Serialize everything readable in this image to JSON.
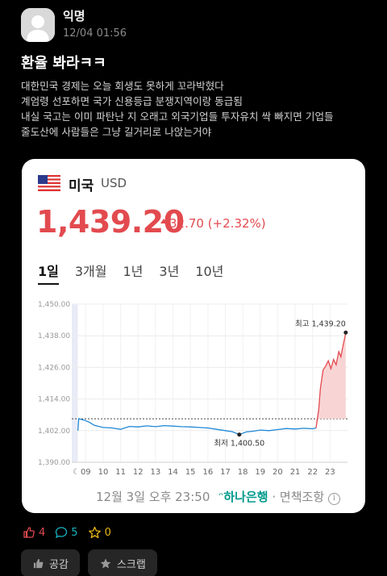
{
  "post": {
    "author": "익명",
    "time": "12/04 01:56",
    "title": "환율 봐라ㅋㅋ",
    "body": [
      "대한민국 경제는 오늘 회생도 못하게 꼬라박혔다",
      "계엄령 선포하면 국가 신용등급 분쟁지역이랑 동급됨",
      "내실 국고는 이미 파탄난 지 오래고 외국기업들 투자유치 싹 빠지면 기업들",
      "줄도산에 사람들은 그냥 길거리로 나앉는거야"
    ]
  },
  "card": {
    "country": "미국",
    "currency": "USD",
    "rate": "1,439.20",
    "change": "32.70 (+2.32%)",
    "tabs": [
      "1일",
      "3개월",
      "1년",
      "3년",
      "10년"
    ],
    "active_tab": "1일",
    "timestamp": "12월 3일 오후 23:50",
    "source": "하나은행",
    "disclaimer": "면책조항",
    "colors": {
      "up": "#e24a4f",
      "line": "#1f88d6",
      "flag_blue": "#2b3a8c"
    }
  },
  "chart_data": {
    "type": "line",
    "title": "",
    "xlabel": "",
    "ylabel": "",
    "y_ticks": [
      "1,450.00",
      "1,438.00",
      "1,426.00",
      "1,414.00",
      "1,402.00",
      "1,390.00"
    ],
    "x_ticks": [
      "09",
      "10",
      "11",
      "12",
      "13",
      "14",
      "15",
      "16",
      "17",
      "18",
      "19",
      "20",
      "21",
      "22",
      "23"
    ],
    "ylim": [
      1390,
      1450
    ],
    "xlim": [
      8.2,
      24.0
    ],
    "reference_line": 1406.5,
    "annotations": {
      "max_label": "최고 1,439.20",
      "min_label": "최저 1,400.50",
      "max": {
        "x": 23.9,
        "y": 1439.2
      },
      "min": {
        "x": 17.8,
        "y": 1400.5
      }
    },
    "series": [
      {
        "points": [
          [
            8.55,
            1402.0
          ],
          [
            8.6,
            1406.5
          ],
          [
            8.9,
            1406.0
          ],
          [
            9.2,
            1405.2
          ],
          [
            9.5,
            1404.0
          ],
          [
            10.0,
            1403.2
          ],
          [
            10.5,
            1403.0
          ],
          [
            11.0,
            1402.5
          ],
          [
            11.5,
            1403.6
          ],
          [
            12.0,
            1403.4
          ],
          [
            12.5,
            1403.8
          ],
          [
            13.0,
            1403.5
          ],
          [
            13.5,
            1403.9
          ],
          [
            14.0,
            1403.7
          ],
          [
            14.5,
            1403.5
          ],
          [
            15.0,
            1403.4
          ],
          [
            15.5,
            1403.2
          ],
          [
            16.0,
            1403.0
          ],
          [
            16.5,
            1402.5
          ],
          [
            17.0,
            1402.0
          ],
          [
            17.4,
            1401.6
          ],
          [
            17.8,
            1400.5
          ],
          [
            18.2,
            1401.5
          ],
          [
            18.6,
            1401.8
          ],
          [
            19.0,
            1402.2
          ],
          [
            19.5,
            1402.0
          ],
          [
            20.0,
            1402.4
          ],
          [
            20.5,
            1402.8
          ],
          [
            21.0,
            1402.6
          ],
          [
            21.5,
            1402.9
          ],
          [
            22.0,
            1402.7
          ],
          [
            22.2,
            1403.0
          ],
          [
            22.35,
            1410.0
          ],
          [
            22.45,
            1418.0
          ],
          [
            22.6,
            1425.0
          ],
          [
            22.75,
            1426.5
          ],
          [
            22.9,
            1428.5
          ],
          [
            23.05,
            1425.5
          ],
          [
            23.2,
            1429.0
          ],
          [
            23.35,
            1427.0
          ],
          [
            23.5,
            1432.0
          ],
          [
            23.62,
            1430.0
          ],
          [
            23.75,
            1434.5
          ],
          [
            23.85,
            1437.5
          ],
          [
            23.9,
            1439.2
          ]
        ]
      }
    ]
  },
  "reactions": {
    "likes": "4",
    "comments": "5",
    "stars": "0"
  },
  "actions": {
    "like_label": "공감",
    "scrap_label": "스크랩"
  }
}
